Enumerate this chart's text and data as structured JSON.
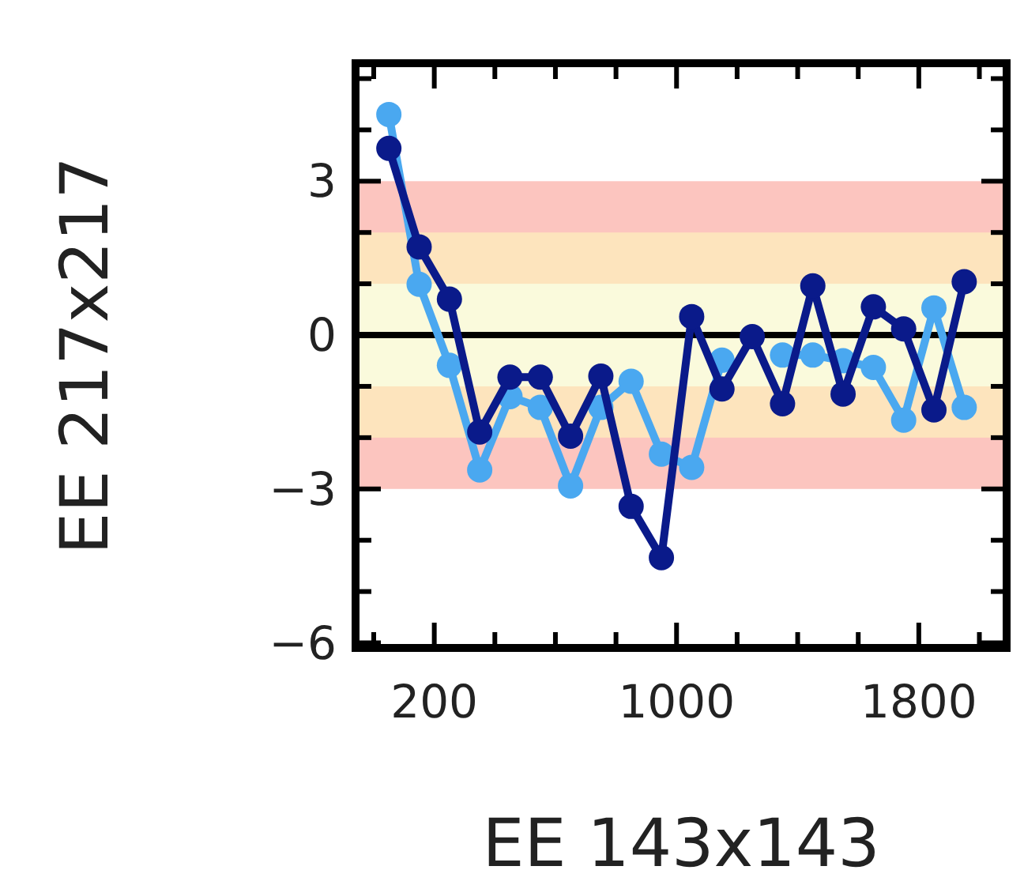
{
  "chart_data": {
    "type": "line",
    "xlabel": "EE 143x143",
    "ylabel": "EE 217x217",
    "x": [
      50,
      150,
      250,
      350,
      450,
      550,
      650,
      750,
      850,
      950,
      1050,
      1150,
      1250,
      1350,
      1450,
      1550,
      1650,
      1750,
      1850,
      1950
    ],
    "series": [
      {
        "color": "#4aa8f0",
        "values": [
          4.3,
          0.99,
          -0.59,
          -2.63,
          -1.2,
          -1.41,
          -2.94,
          -1.41,
          -0.9,
          -2.32,
          -2.58,
          -0.49,
          null,
          -0.39,
          -0.39,
          -0.5,
          -0.63,
          -1.66,
          0.53,
          -1.41
        ]
      },
      {
        "color": "#0a1a8a",
        "values": [
          3.64,
          1.72,
          0.7,
          -1.89,
          -0.82,
          -0.82,
          -1.97,
          -0.8,
          -3.34,
          -4.34,
          0.36,
          -1.05,
          -0.03,
          -1.34,
          0.96,
          -1.15,
          0.55,
          0.12,
          -1.46,
          1.04
        ]
      }
    ],
    "marker": "circle",
    "line_style": "solid",
    "grid": false,
    "xlim": [
      -60,
      2090
    ],
    "xticks": [
      {
        "value": 0,
        "label": null
      },
      200,
      {
        "value": 400,
        "label": null
      },
      {
        "value": 600,
        "label": null
      },
      {
        "value": 800,
        "label": null
      },
      1000,
      {
        "value": 1200,
        "label": null
      },
      {
        "value": 1400,
        "label": null
      },
      {
        "value": 1600,
        "label": null
      },
      1800,
      {
        "value": 2000,
        "label": null
      }
    ],
    "ylim": [
      -6.1,
      5.3
    ],
    "yticks": [
      -6,
      {
        "value": -5,
        "label": null
      },
      {
        "value": -4,
        "label": null
      },
      -3,
      {
        "value": -2,
        "label": null
      },
      {
        "value": -1,
        "label": null
      },
      0,
      {
        "value": 1,
        "label": null
      },
      {
        "value": 2,
        "label": null
      },
      3,
      {
        "value": 4,
        "label": null
      },
      {
        "value": 5,
        "label": null
      }
    ],
    "bands": [
      {
        "axis": "y",
        "from": -3,
        "to": 3,
        "color": "#fcc5bf"
      },
      {
        "axis": "y",
        "from": -2,
        "to": 2,
        "color": "#fde4bd"
      },
      {
        "axis": "y",
        "from": -1,
        "to": 1,
        "color": "#fafadc"
      }
    ],
    "ref_lines": [
      {
        "axis": "y",
        "value": 0,
        "color": "#000000",
        "line_style": "solid"
      }
    ]
  }
}
